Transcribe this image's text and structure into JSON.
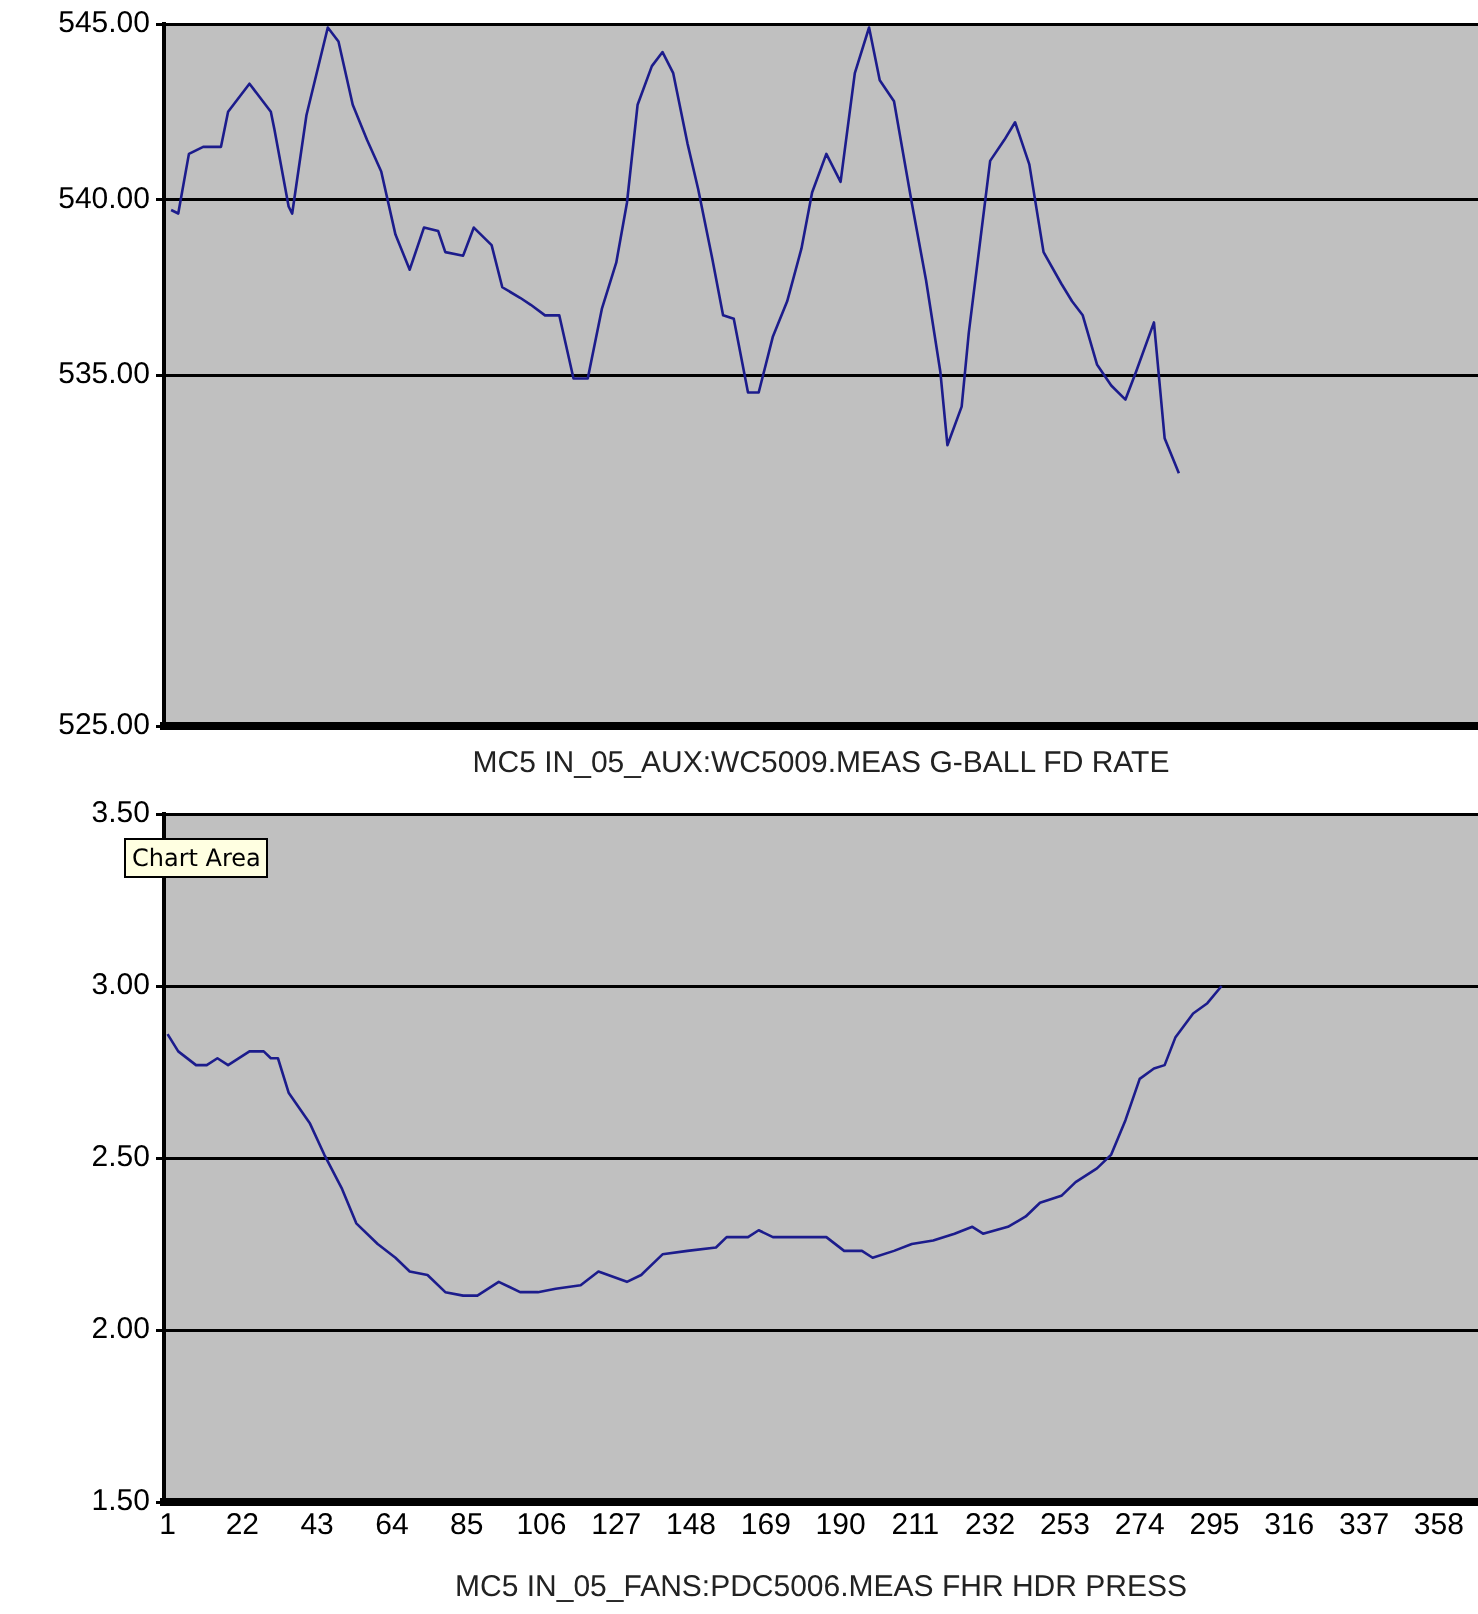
{
  "chart_data": [
    {
      "type": "line",
      "xlabel": "MC5 IN_05_AUX:WC5009.MEAS G-BALL FD RATE",
      "xlim": [
        0,
        369
      ],
      "ylim": [
        525,
        545
      ],
      "yticks": [
        {
          "value": 525,
          "label": "525.00"
        },
        {
          "value": 535,
          "label": "535.00"
        },
        {
          "value": 540,
          "label": "540.00"
        },
        {
          "value": 545,
          "label": "545.00"
        }
      ],
      "grid": "y",
      "tick_labels": "y",
      "marker": "none",
      "line_style": "solid",
      "series": [
        {
          "color": "#1c1c8c",
          "x": [
            2,
            4,
            7,
            11,
            16,
            18,
            24,
            30,
            31,
            35,
            36,
            40,
            46,
            49,
            53,
            57,
            61,
            65,
            69,
            73,
            77,
            79,
            84,
            87,
            92,
            95,
            100,
            103,
            107,
            111,
            115,
            119,
            123,
            127,
            130,
            133,
            137,
            140,
            143,
            147,
            150,
            154,
            157,
            160,
            164,
            167,
            171,
            175,
            179,
            182,
            186,
            190,
            194,
            198,
            201,
            205,
            210,
            214,
            218,
            220,
            224,
            226,
            232,
            236,
            239,
            243,
            247,
            252,
            255,
            258,
            262,
            266,
            270,
            273,
            278,
            281,
            285
          ],
          "values": [
            539.7,
            539.6,
            541.3,
            541.5,
            541.5,
            542.5,
            543.3,
            542.5,
            542.0,
            539.8,
            539.6,
            542.4,
            544.9,
            544.5,
            542.7,
            541.7,
            540.8,
            539.0,
            538.0,
            539.2,
            539.1,
            538.5,
            538.4,
            539.2,
            538.7,
            537.5,
            537.2,
            537.0,
            536.7,
            536.7,
            534.9,
            534.9,
            536.9,
            538.2,
            539.9,
            542.7,
            543.8,
            544.2,
            543.6,
            541.6,
            540.3,
            538.3,
            536.7,
            536.6,
            534.5,
            534.5,
            536.1,
            537.1,
            538.6,
            540.2,
            541.3,
            540.5,
            543.6,
            544.9,
            543.4,
            542.8,
            539.9,
            537.7,
            535.1,
            533.0,
            534.1,
            536.2,
            541.1,
            541.7,
            542.2,
            541.0,
            538.5,
            537.6,
            537.1,
            536.7,
            535.3,
            534.7,
            534.3,
            535.1,
            536.5,
            533.2,
            532.2
          ]
        }
      ]
    },
    {
      "type": "line",
      "xlabel": "MC5 IN_05_FANS:PDC5006.MEAS FHR HDR PRESS",
      "xlim": [
        0,
        369
      ],
      "xticks": [
        1,
        22,
        43,
        64,
        85,
        106,
        127,
        148,
        169,
        190,
        211,
        232,
        253,
        274,
        295,
        316,
        337,
        358
      ],
      "ylim": [
        1.5,
        3.5
      ],
      "yticks": [
        {
          "value": 1.5,
          "label": "1.50"
        },
        {
          "value": 2,
          "label": "2.00"
        },
        {
          "value": 2.5,
          "label": "2.50"
        },
        {
          "value": 3,
          "label": "3.00"
        },
        {
          "value": 3.5,
          "label": "3.50"
        }
      ],
      "grid": "y",
      "marker": "none",
      "line_style": "solid",
      "annotations": [
        "Chart Area"
      ],
      "series": [
        {
          "color": "#1c1c8c",
          "x": [
            1,
            4,
            9,
            12,
            15,
            18,
            24,
            28,
            30,
            32,
            35,
            41,
            45,
            50,
            54,
            60,
            65,
            69,
            74,
            79,
            84,
            88,
            94,
            100,
            105,
            110,
            117,
            122,
            130,
            134,
            140,
            147,
            155,
            158,
            164,
            167,
            171,
            186,
            191,
            196,
            199,
            205,
            210,
            216,
            222,
            227,
            230,
            237,
            242,
            246,
            252,
            256,
            262,
            266,
            270,
            274,
            278,
            281,
            284,
            289,
            293,
            297
          ],
          "values": [
            2.86,
            2.81,
            2.77,
            2.77,
            2.79,
            2.77,
            2.81,
            2.81,
            2.79,
            2.79,
            2.69,
            2.6,
            2.51,
            2.41,
            2.31,
            2.25,
            2.21,
            2.17,
            2.16,
            2.11,
            2.1,
            2.1,
            2.14,
            2.11,
            2.11,
            2.12,
            2.13,
            2.17,
            2.14,
            2.16,
            2.22,
            2.23,
            2.24,
            2.27,
            2.27,
            2.29,
            2.27,
            2.27,
            2.23,
            2.23,
            2.21,
            2.23,
            2.25,
            2.26,
            2.28,
            2.3,
            2.28,
            2.3,
            2.33,
            2.37,
            2.39,
            2.43,
            2.47,
            2.51,
            2.61,
            2.73,
            2.76,
            2.77,
            2.85,
            2.92,
            2.95,
            3.0
          ]
        }
      ]
    }
  ]
}
